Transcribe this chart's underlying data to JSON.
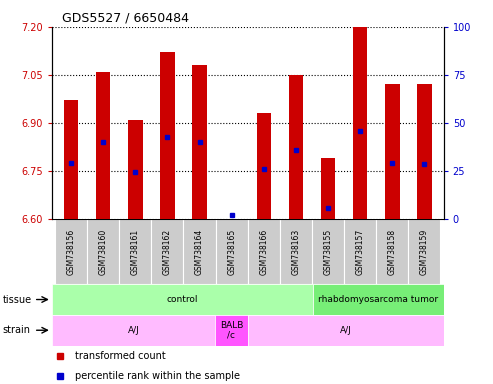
{
  "title": "GDS5527 / 6650484",
  "samples": [
    "GSM738156",
    "GSM738160",
    "GSM738161",
    "GSM738162",
    "GSM738164",
    "GSM738165",
    "GSM738166",
    "GSM738163",
    "GSM738155",
    "GSM738157",
    "GSM738158",
    "GSM738159"
  ],
  "red_values": [
    6.97,
    7.06,
    6.91,
    7.12,
    7.08,
    6.6,
    6.93,
    7.05,
    6.79,
    7.2,
    7.02,
    7.02
  ],
  "blue_values": [
    6.775,
    6.84,
    6.745,
    6.855,
    6.84,
    6.613,
    6.755,
    6.815,
    6.635,
    6.875,
    6.775,
    6.77
  ],
  "ylim_left": [
    6.6,
    7.2
  ],
  "ylim_right": [
    0,
    100
  ],
  "yticks_left": [
    6.6,
    6.75,
    6.9,
    7.05,
    7.2
  ],
  "yticks_right": [
    0,
    25,
    50,
    75,
    100
  ],
  "tissue_groups": [
    {
      "label": "control",
      "start": 0,
      "end": 8,
      "color": "#aaffaa"
    },
    {
      "label": "rhabdomyosarcoma tumor",
      "start": 8,
      "end": 12,
      "color": "#77ee77"
    }
  ],
  "strain_groups": [
    {
      "label": "A/J",
      "start": 0,
      "end": 5,
      "color": "#ffbbff"
    },
    {
      "label": "BALB\n/c",
      "start": 5,
      "end": 6,
      "color": "#ff55ff"
    },
    {
      "label": "A/J",
      "start": 6,
      "end": 12,
      "color": "#ffbbff"
    }
  ],
  "bar_color": "#cc0000",
  "dot_color": "#0000cc",
  "left_axis_color": "#cc0000",
  "right_axis_color": "#0000cc",
  "bar_width": 0.45
}
